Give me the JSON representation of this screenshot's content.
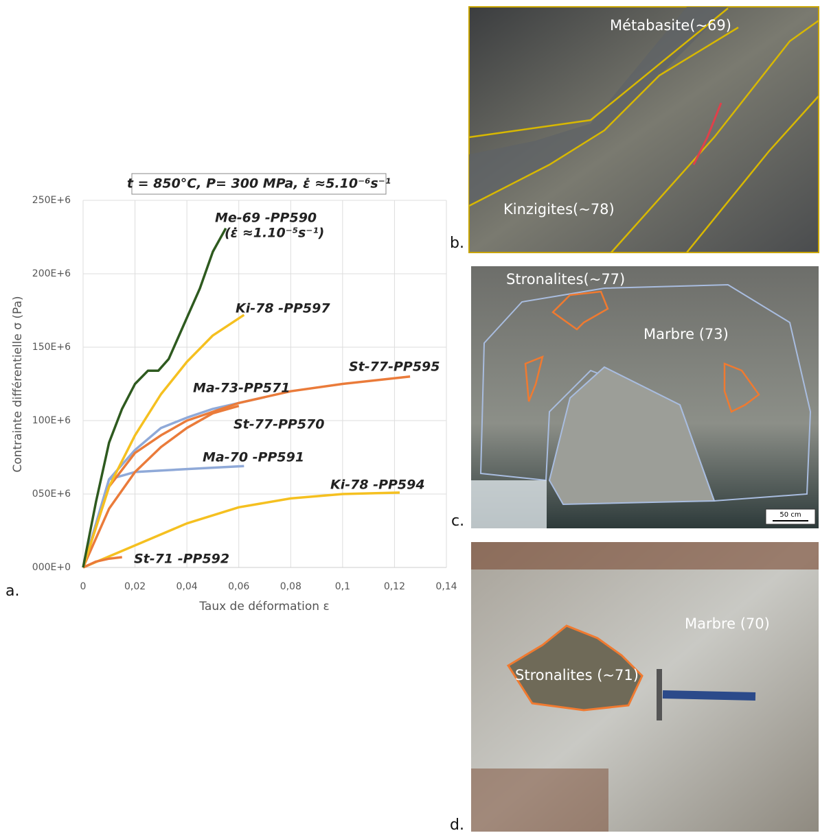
{
  "chart_data": {
    "type": "line",
    "title": "t = 850°C, P= 300 MPa,  ε̇ ≈5.10⁻⁶s⁻¹",
    "x_label": "Taux de déformation ε",
    "y_label": "Contrainte différentielle σ (Pa)",
    "annotation": "(ε̇ ≈1.10⁻⁵s⁻¹)",
    "xlim": [
      0,
      0.14
    ],
    "xticks": [
      0,
      {
        "value": 0.02,
        "label": "0,02"
      },
      {
        "value": 0.04,
        "label": "0,04"
      },
      {
        "value": 0.06,
        "label": "0,06"
      },
      {
        "value": 0.08,
        "label": "0,08"
      },
      {
        "value": 0.1,
        "label": "0,1"
      },
      {
        "value": 0.12,
        "label": "0,12"
      },
      {
        "value": 0.14,
        "label": "0,14"
      }
    ],
    "ylim": [
      0,
      250000000
    ],
    "yticks": [
      {
        "value": 0,
        "label": "000E+0"
      },
      {
        "value": 50000000,
        "label": "050E+6"
      },
      {
        "value": 100000000,
        "label": "100E+6"
      },
      {
        "value": 150000000,
        "label": "150E+6"
      },
      {
        "value": 200000000,
        "label": "200E+6"
      },
      {
        "value": 250000000,
        "label": "250E+6"
      }
    ],
    "grid": true,
    "series": [
      {
        "name": "Me-69 -PP590",
        "color": "#2e5a1f",
        "x": [
          0,
          0.005,
          0.01,
          0.015,
          0.02,
          0.025,
          0.029,
          0.033,
          0.04,
          0.045,
          0.05,
          0.055
        ],
        "values": [
          0,
          45000000,
          85000000,
          108000000,
          125000000,
          134000000,
          134000000,
          142000000,
          170000000,
          190000000,
          215000000,
          231000000
        ]
      },
      {
        "name": "Ki-78 -PP597",
        "color": "#f5c020",
        "x": [
          0,
          0.01,
          0.02,
          0.03,
          0.04,
          0.05,
          0.062
        ],
        "values": [
          0,
          55000000,
          90000000,
          118000000,
          140000000,
          158000000,
          172000000
        ]
      },
      {
        "name": "St-77-PP595",
        "color": "#ea7b3a",
        "x": [
          0,
          0.01,
          0.02,
          0.03,
          0.04,
          0.06,
          0.08,
          0.1,
          0.126
        ],
        "values": [
          0,
          55000000,
          78000000,
          90000000,
          100000000,
          112000000,
          120000000,
          125000000,
          130000000
        ]
      },
      {
        "name": "Ma-73-PP571",
        "color": "#8fa9d8",
        "x": [
          0,
          0.01,
          0.02,
          0.03,
          0.04,
          0.05,
          0.06,
          0.07
        ],
        "values": [
          0,
          60000000,
          80000000,
          95000000,
          102000000,
          108000000,
          112000000,
          116000000
        ]
      },
      {
        "name": "St-77-PP570",
        "color": "#ea7b3a",
        "x": [
          0,
          0.01,
          0.02,
          0.03,
          0.04,
          0.05,
          0.06
        ],
        "values": [
          0,
          40000000,
          65000000,
          82000000,
          95000000,
          105000000,
          110000000
        ]
      },
      {
        "name": "Ma-70 -PP591",
        "color": "#8fa9d8",
        "x": [
          0,
          0.01,
          0.02,
          0.04,
          0.062
        ],
        "values": [
          0,
          60000000,
          65000000,
          67000000,
          69000000
        ]
      },
      {
        "name": "Ki-78 -PP594",
        "color": "#f5c020",
        "x": [
          0,
          0.02,
          0.04,
          0.06,
          0.08,
          0.1,
          0.122
        ],
        "values": [
          0,
          15000000,
          30000000,
          41000000,
          47000000,
          50000000,
          51000000
        ]
      },
      {
        "name": "St-71 -PP592",
        "color": "#ea7b3a",
        "x": [
          0,
          0.005,
          0.01,
          0.015
        ],
        "values": [
          0,
          4000000,
          6000000,
          7000000
        ]
      }
    ]
  },
  "panels": {
    "a": "a.",
    "b": "b.",
    "c": "c.",
    "d": "d."
  },
  "photos": {
    "b": {
      "labels": [
        "Métabasite(~69)",
        "Kinzigites(~78)"
      ]
    },
    "c": {
      "labels": [
        "Stronalites(~77)",
        "Marbre (73)"
      ],
      "scale": "50 cm"
    },
    "d": {
      "labels": [
        "Marbre (70)",
        "Stronalites (~71)"
      ]
    }
  }
}
